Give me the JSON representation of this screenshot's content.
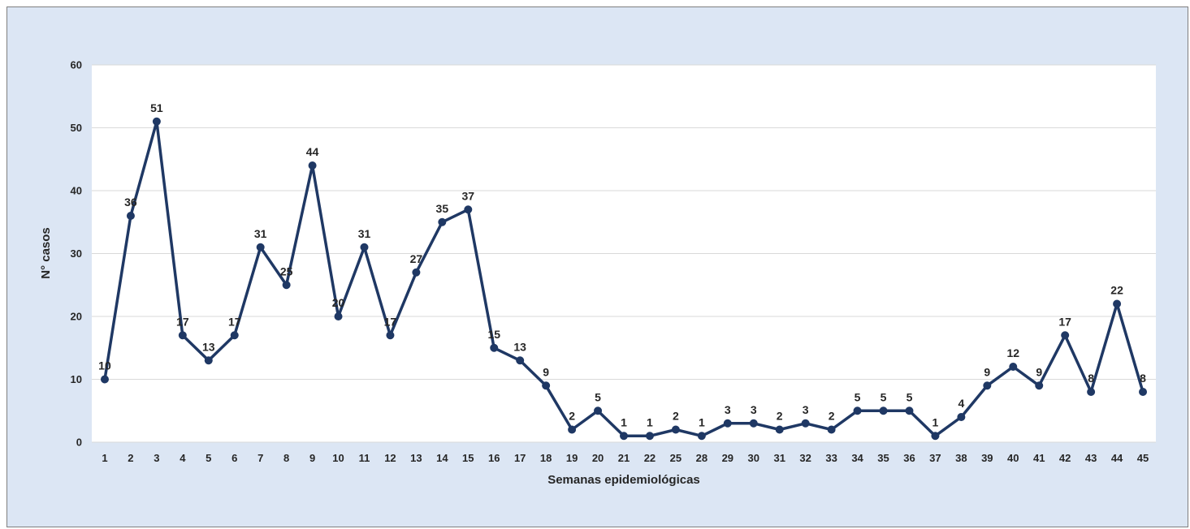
{
  "chart_data": {
    "type": "line",
    "title": "",
    "xlabel": "Semanas epidemiológicas",
    "ylabel": "N° casos",
    "ylim": [
      0,
      60
    ],
    "yticks": [
      0,
      10,
      20,
      30,
      40,
      50,
      60
    ],
    "grid": true,
    "legend": "none",
    "line_color": "#1f3864",
    "plot_background": "#ffffff",
    "chart_background": "#dce6f4",
    "categories": [
      "1",
      "2",
      "3",
      "4",
      "5",
      "6",
      "7",
      "8",
      "9",
      "10",
      "11",
      "12",
      "13",
      "14",
      "15",
      "16",
      "17",
      "18",
      "19",
      "20",
      "21",
      "22",
      "25",
      "28",
      "29",
      "30",
      "31",
      "32",
      "33",
      "34",
      "35",
      "36",
      "37",
      "38",
      "39",
      "40",
      "41",
      "42",
      "43",
      "44",
      "45"
    ],
    "series": [
      {
        "values": [
          10,
          36,
          51,
          17,
          13,
          17,
          31,
          25,
          44,
          20,
          31,
          17,
          27,
          35,
          37,
          15,
          13,
          9,
          2,
          5,
          1,
          1,
          2,
          1,
          3,
          3,
          2,
          3,
          2,
          5,
          5,
          5,
          1,
          4,
          9,
          12,
          9,
          17,
          8,
          22,
          8
        ]
      }
    ]
  }
}
